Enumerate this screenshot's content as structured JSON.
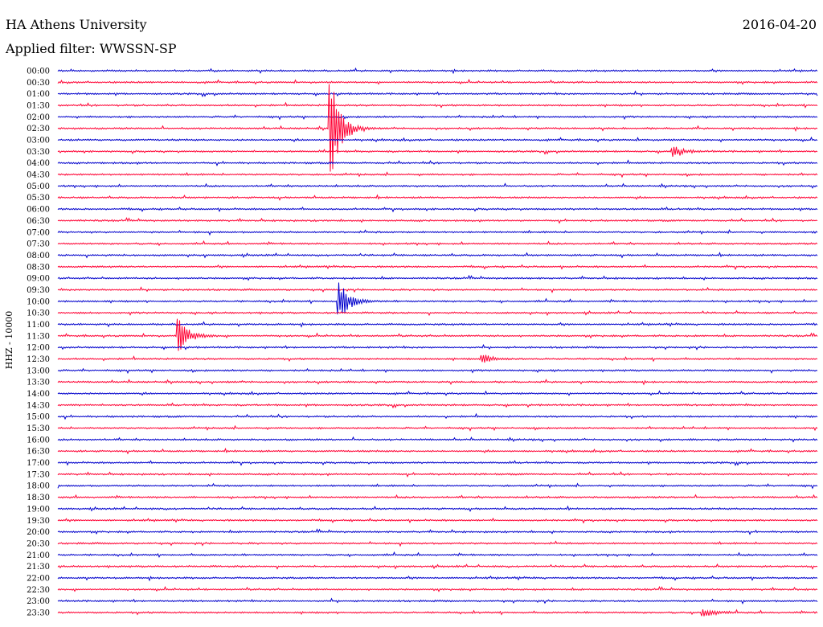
{
  "header": {
    "station": "HA Athens University",
    "date": "2016-04-20",
    "filter": "Applied filter: WWSSN-SP"
  },
  "chart_data": {
    "type": "line",
    "title": "HA Athens University",
    "subtitle": "Applied filter: WWSSN-SP",
    "ylabel": "HHZ - 10000",
    "grid": false,
    "series_colors": [
      "#0000cc",
      "#ff0033"
    ],
    "trace_labels": [
      "00:00",
      "00:30",
      "01:00",
      "01:30",
      "02:00",
      "02:30",
      "03:00",
      "03:30",
      "04:00",
      "04:30",
      "05:00",
      "05:30",
      "06:00",
      "06:30",
      "07:00",
      "07:30",
      "08:00",
      "08:30",
      "09:00",
      "09:30",
      "10:00",
      "10:30",
      "11:00",
      "11:30",
      "12:00",
      "12:30",
      "13:00",
      "13:30",
      "14:00",
      "14:30",
      "15:00",
      "15:30",
      "16:00",
      "16:30",
      "17:00",
      "17:30",
      "18:00",
      "18:30",
      "19:00",
      "19:30",
      "20:00",
      "20:30",
      "21:00",
      "21:30",
      "22:00",
      "22:30",
      "23:00",
      "23:30"
    ],
    "events": [
      {
        "trace": "02:30",
        "x": 0.36,
        "amplitude": 1.0
      },
      {
        "trace": "10:00",
        "x": 0.37,
        "amplitude": 0.45
      },
      {
        "trace": "11:30",
        "x": 0.16,
        "amplitude": 0.35
      },
      {
        "trace": "03:30",
        "x": 0.81,
        "amplitude": 0.12
      },
      {
        "trace": "12:30",
        "x": 0.56,
        "amplitude": 0.1
      },
      {
        "trace": "23:30",
        "x": 0.85,
        "amplitude": 0.1
      }
    ]
  }
}
